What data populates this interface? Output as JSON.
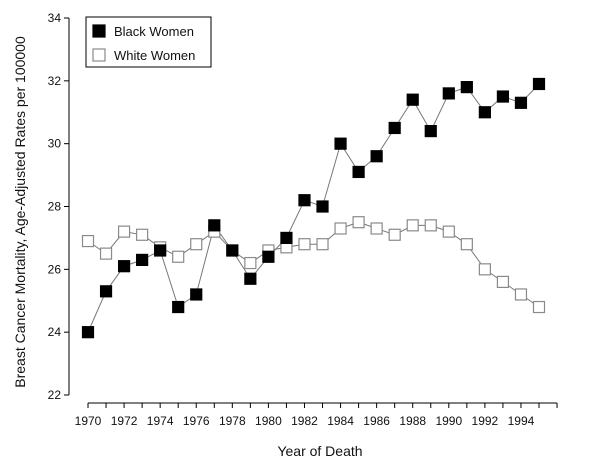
{
  "chart_data": {
    "type": "line",
    "title": "",
    "xlabel": "Year of Death",
    "ylabel": "Breast Cancer Mortality, Age-Adjusted Rates per 100000",
    "xlim": [
      1970,
      1996
    ],
    "ylim": [
      22,
      34
    ],
    "x_ticks": [
      "1970",
      "1972",
      "1974",
      "1976",
      "1978",
      "1980",
      "1982",
      "1984",
      "1986",
      "1988",
      "1990",
      "1992",
      "1994"
    ],
    "y_ticks": [
      "22",
      "24",
      "26",
      "28",
      "30",
      "32",
      "34"
    ],
    "grid": false,
    "legend_position": "top-left",
    "x": [
      1970,
      1971,
      1972,
      1973,
      1974,
      1975,
      1976,
      1977,
      1978,
      1979,
      1980,
      1981,
      1982,
      1983,
      1984,
      1985,
      1986,
      1987,
      1988,
      1989,
      1990,
      1991,
      1992,
      1993,
      1994,
      1995
    ],
    "series": [
      {
        "name": "Black Women",
        "marker": "filled-square",
        "color": "#000000",
        "values": [
          24.0,
          25.3,
          26.1,
          26.3,
          26.6,
          24.8,
          25.2,
          27.4,
          26.6,
          25.7,
          26.4,
          27.0,
          28.2,
          28.0,
          30.0,
          29.1,
          29.6,
          30.5,
          31.4,
          30.4,
          31.6,
          31.8,
          31.0,
          31.5,
          31.3,
          31.9
        ]
      },
      {
        "name": "White Women",
        "marker": "open-square",
        "color": "#ffffff",
        "values": [
          26.9,
          26.5,
          27.2,
          27.1,
          26.7,
          26.4,
          26.8,
          27.2,
          26.6,
          26.2,
          26.6,
          26.7,
          26.8,
          26.8,
          27.3,
          27.5,
          27.3,
          27.1,
          27.4,
          27.4,
          27.2,
          26.8,
          26.0,
          25.6,
          25.2,
          24.8
        ]
      }
    ]
  }
}
